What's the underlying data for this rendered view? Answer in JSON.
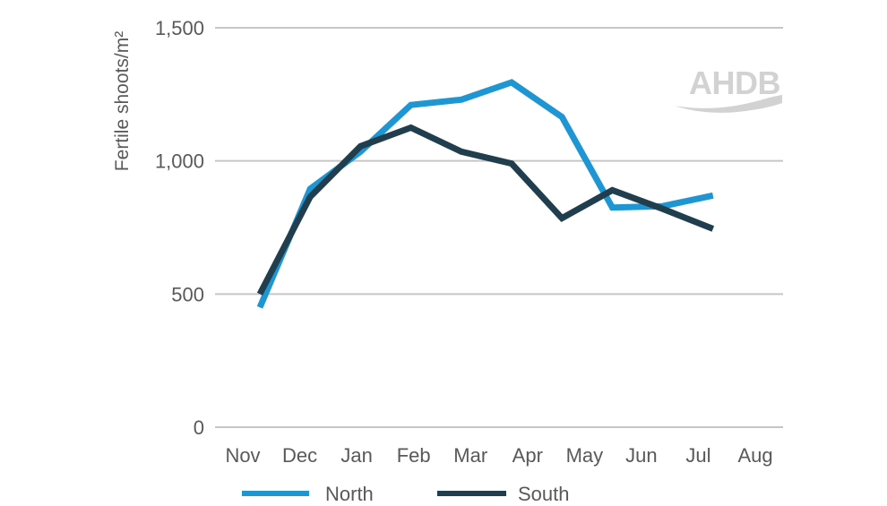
{
  "chart_data": {
    "type": "line",
    "categories": [
      "Nov",
      "Dec",
      "Jan",
      "Feb",
      "Mar",
      "Apr",
      "May",
      "Jun",
      "Jul",
      "Aug"
    ],
    "series": [
      {
        "name": "North",
        "color": "#1f96d4",
        "values": [
          450,
          895,
          1035,
          1210,
          1230,
          1295,
          1165,
          825,
          830,
          870
        ]
      },
      {
        "name": "South",
        "color": "#203e4e",
        "values": [
          500,
          865,
          1055,
          1125,
          1035,
          990,
          785,
          890,
          820,
          745
        ]
      }
    ],
    "title": "",
    "xlabel": "",
    "ylabel": "Fertile shoots/m²",
    "ylim": [
      0,
      1500
    ],
    "yticks": [
      0,
      500,
      1000,
      1500
    ],
    "ytick_labels": [
      "0",
      "500",
      "1,000",
      "1,500"
    ],
    "grid": "horizontal-only",
    "legend_position": "bottom"
  },
  "watermark": {
    "text": "AHDB",
    "color": "#d2d2d2"
  },
  "style": {
    "grid_color": "#c6c6c6",
    "text_color": "#595959",
    "background": "#ffffff",
    "line_width": 7
  }
}
